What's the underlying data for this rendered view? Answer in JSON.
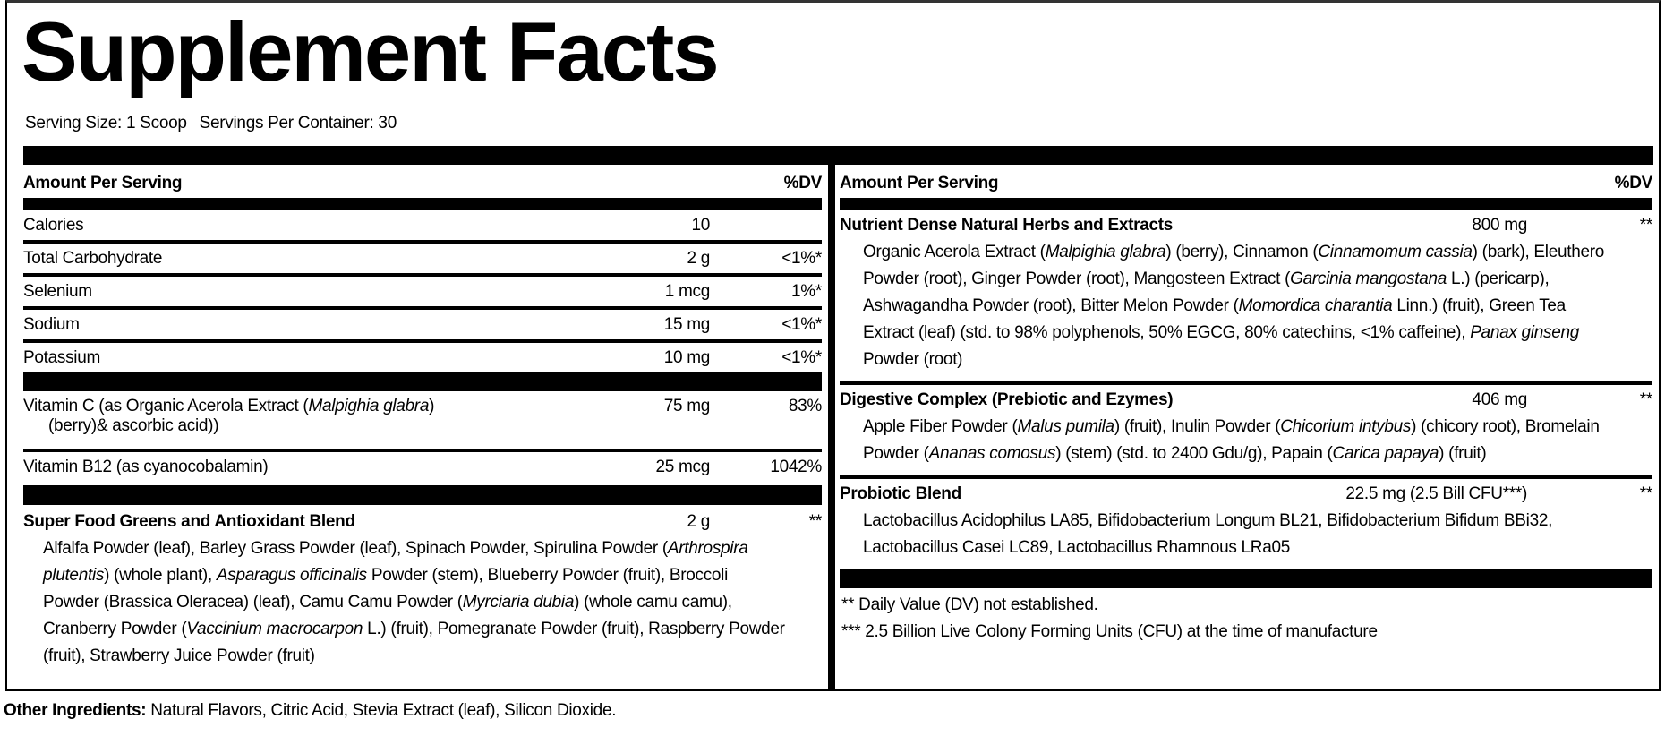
{
  "title": "Supplement Facts",
  "serving_size": "Serving Size: 1 Scoop",
  "servings_per_container": "Servings Per Container: 30",
  "left": {
    "header": {
      "amount": "Amount Per Serving",
      "dv": "%DV"
    },
    "rows": [
      {
        "name": "Calories",
        "amount": "10",
        "dv": ""
      },
      {
        "name": "Total Carbohydrate",
        "amount": "2 g",
        "dv": "<1%*"
      },
      {
        "name": "Selenium",
        "amount": "1 mcg",
        "dv": "1%*"
      },
      {
        "name": "Sodium",
        "amount": "15 mg",
        "dv": "<1%*"
      },
      {
        "name": "Potassium",
        "amount": "10 mg",
        "dv": "<1%*"
      }
    ],
    "vitc": {
      "line1": [
        {
          "t": "Vitamin C (as Organic Acerola Extract ("
        },
        {
          "t": "Malpighia glabra",
          "i": true
        },
        {
          "t": ")"
        }
      ],
      "line2": "(berry)& ascorbic acid))",
      "amount": "75 mg",
      "dv": "83%"
    },
    "b12": {
      "name": "Vitamin B12 (as cyanocobalamin)",
      "amount": "25 mcg",
      "dv": "1042%"
    },
    "blend": {
      "name": "Super Food Greens and Antioxidant Blend",
      "amount": "2 g",
      "dv": "**",
      "desc": [
        {
          "t": "Alfalfa Powder (leaf), Barley Grass Powder (leaf), Spinach Powder, Spirulina Powder ("
        },
        {
          "t": "Arthrospira plutentis",
          "i": true
        },
        {
          "t": ") (whole plant), "
        },
        {
          "t": "Asparagus officinalis",
          "i": true
        },
        {
          "t": " Powder (stem), Blueberry Powder (fruit), Broccoli Powder (Brassica Oleracea) (leaf), Camu Camu Powder ("
        },
        {
          "t": "Myrciaria dubia",
          "i": true
        },
        {
          "t": ") (whole camu camu), Cranberry Powder ("
        },
        {
          "t": "Vaccinium macrocarpon",
          "i": true
        },
        {
          "t": " L.) (fruit), Pomegranate Powder (fruit), Raspberry Powder (fruit), Strawberry Juice Powder (fruit)"
        }
      ]
    }
  },
  "right": {
    "header": {
      "amount": "Amount Per Serving",
      "dv": "%DV"
    },
    "blends": [
      {
        "name": "Nutrient Dense Natural Herbs and Extracts",
        "amount": "800 mg",
        "dv": "**",
        "desc": [
          {
            "t": "Organic Acerola Extract ("
          },
          {
            "t": "Malpighia glabra",
            "i": true
          },
          {
            "t": ") (berry), Cinnamon ("
          },
          {
            "t": "Cinnamomum cassia",
            "i": true
          },
          {
            "t": ") (bark), Eleuthero Powder (root), Ginger Powder (root), Mangosteen Extract ("
          },
          {
            "t": "Garcinia mangostana",
            "i": true
          },
          {
            "t": " L.) (pericarp), Ashwagandha Powder (root), Bitter Melon Powder ("
          },
          {
            "t": "Momordica charantia",
            "i": true
          },
          {
            "t": " Linn.) (fruit), Green Tea Extract (leaf) (std. to 98% polyphenols, 50% EGCG, 80% catechins, <1% caffeine), "
          },
          {
            "t": "Panax ginseng",
            "i": true
          },
          {
            "t": " Powder (root)"
          }
        ]
      },
      {
        "name": "Digestive Complex (Prebiotic and Ezymes)",
        "amount": "406 mg",
        "dv": "**",
        "desc": [
          {
            "t": "Apple Fiber Powder ("
          },
          {
            "t": "Malus pumila",
            "i": true
          },
          {
            "t": ") (fruit), Inulin Powder ("
          },
          {
            "t": "Chicorium intybus",
            "i": true
          },
          {
            "t": ") (chicory root), Bromelain Powder ("
          },
          {
            "t": "Ananas comosus",
            "i": true
          },
          {
            "t": ") (stem) (std. to 2400 Gdu/g), Papain ("
          },
          {
            "t": "Carica papaya",
            "i": true
          },
          {
            "t": ") (fruit)"
          }
        ]
      },
      {
        "name": "Probiotic Blend",
        "amount": "22.5 mg (2.5 Bill CFU***)",
        "dv": "**",
        "desc": [
          {
            "t": "Lactobacillus Acidophilus LA85, Bifidobacterium Longum BL21, Bifidobacterium Bifidum BBi32, Lactobacillus Casei LC89, Lactobacillus Rhamnous LRa05"
          }
        ]
      }
    ],
    "footnotes": [
      "** Daily Value (DV) not established.",
      "*** 2.5 Billion Live Colony Forming Units (CFU) at the time of manufacture"
    ]
  },
  "other": {
    "label": "Other Ingredients:",
    "text": " Natural Flavors, Citric Acid, Stevia Extract (leaf), Silicon Dioxide."
  }
}
